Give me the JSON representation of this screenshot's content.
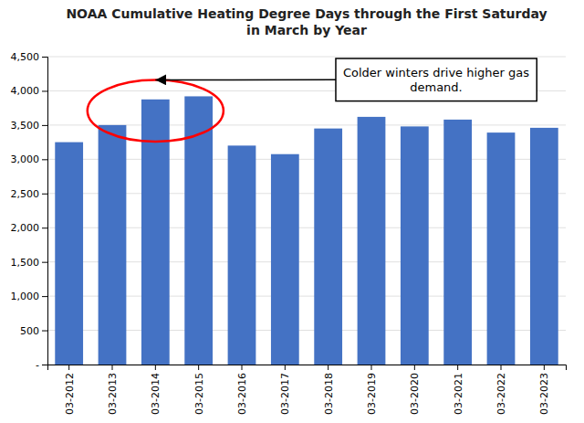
{
  "chart_data": {
    "type": "bar",
    "title": "NOAA Cumulative Heating Degree Days through the First Saturday\nin March by Year",
    "categories": [
      "03-2012",
      "03-2013",
      "03-2014",
      "03-2015",
      "03-2016",
      "03-2017",
      "03-2018",
      "03-2019",
      "03-2020",
      "03-2021",
      "03-2022",
      "03-2023"
    ],
    "values": [
      3250,
      3500,
      3875,
      3920,
      3200,
      3075,
      3450,
      3620,
      3480,
      3580,
      3390,
      3460
    ],
    "color": "#4472C4",
    "ylim": [
      0,
      4500
    ],
    "yticks": [
      {
        "value": 0,
        "label": "-"
      },
      500,
      {
        "value": 1000,
        "label": "1,000"
      },
      {
        "value": 1500,
        "label": "1,500"
      },
      {
        "value": 2000,
        "label": "2,000"
      },
      {
        "value": 2500,
        "label": "2,500"
      },
      {
        "value": 3000,
        "label": "3,000"
      },
      {
        "value": 3500,
        "label": "3,500"
      },
      {
        "value": 4000,
        "label": "4,000"
      },
      {
        "value": 4500,
        "label": "4,500"
      }
    ],
    "grid": true,
    "annotation": "Colder winters drive higher gas\ndemand."
  }
}
